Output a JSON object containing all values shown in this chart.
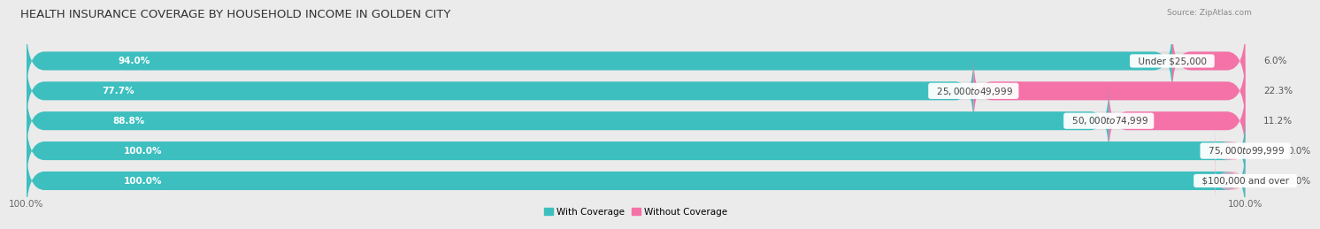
{
  "title": "HEALTH INSURANCE COVERAGE BY HOUSEHOLD INCOME IN GOLDEN CITY",
  "source": "Source: ZipAtlas.com",
  "categories": [
    "Under $25,000",
    "$25,000 to $49,999",
    "$50,000 to $74,999",
    "$75,000 to $99,999",
    "$100,000 and over"
  ],
  "with_coverage": [
    94.0,
    77.7,
    88.8,
    100.0,
    100.0
  ],
  "without_coverage": [
    6.0,
    22.3,
    11.2,
    0.0,
    0.0
  ],
  "color_with": "#3DBFBF",
  "color_without": "#F472A8",
  "color_with_light": "#7ED4D4",
  "bg_color": "#ebebeb",
  "bar_row_bg": "#dedede",
  "legend_with": "With Coverage",
  "legend_without": "Without Coverage",
  "bar_height": 0.62,
  "title_fontsize": 9.5,
  "label_fontsize": 7.5,
  "tick_fontsize": 7.5,
  "cat_fontsize": 7.5,
  "pct_fontsize": 7.5
}
